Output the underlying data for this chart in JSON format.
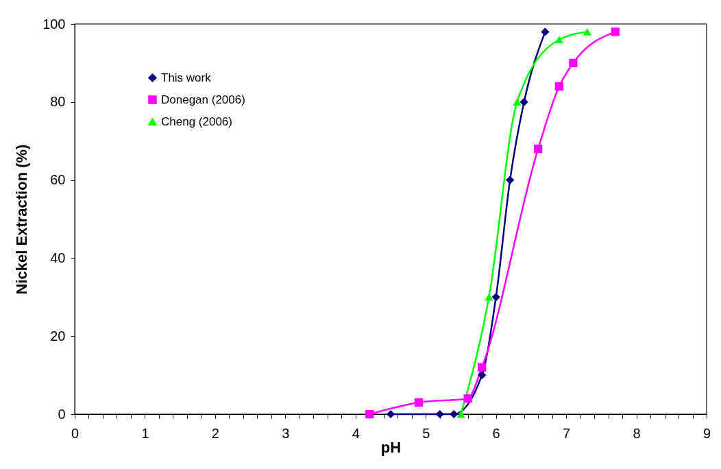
{
  "chart_data": {
    "type": "line",
    "xlabel": "pH",
    "ylabel": "Nickel Extraction (%)",
    "xlim": [
      0,
      9
    ],
    "ylim": [
      0,
      100
    ],
    "xticks": [
      0,
      {
        "value": 0.2,
        "label": null
      },
      {
        "value": 0.4,
        "label": null
      },
      {
        "value": 0.6,
        "label": null
      },
      {
        "value": 0.8,
        "label": null
      },
      1,
      {
        "value": 1.2,
        "label": null
      },
      {
        "value": 1.4,
        "label": null
      },
      {
        "value": 1.6,
        "label": null
      },
      {
        "value": 1.8,
        "label": null
      },
      2,
      {
        "value": 2.2,
        "label": null
      },
      {
        "value": 2.4,
        "label": null
      },
      {
        "value": 2.6,
        "label": null
      },
      {
        "value": 2.8,
        "label": null
      },
      3,
      {
        "value": 3.2,
        "label": null
      },
      {
        "value": 3.4,
        "label": null
      },
      {
        "value": 3.6,
        "label": null
      },
      {
        "value": 3.8,
        "label": null
      },
      4,
      {
        "value": 4.2,
        "label": null
      },
      {
        "value": 4.4,
        "label": null
      },
      {
        "value": 4.6,
        "label": null
      },
      {
        "value": 4.8,
        "label": null
      },
      5,
      {
        "value": 5.2,
        "label": null
      },
      {
        "value": 5.4,
        "label": null
      },
      {
        "value": 5.6,
        "label": null
      },
      {
        "value": 5.8,
        "label": null
      },
      6,
      {
        "value": 6.2,
        "label": null
      },
      {
        "value": 6.4,
        "label": null
      },
      {
        "value": 6.6,
        "label": null
      },
      {
        "value": 6.8,
        "label": null
      },
      7,
      {
        "value": 7.2,
        "label": null
      },
      {
        "value": 7.4,
        "label": null
      },
      {
        "value": 7.6,
        "label": null
      },
      {
        "value": 7.8,
        "label": null
      },
      8,
      {
        "value": 8.2,
        "label": null
      },
      {
        "value": 8.4,
        "label": null
      },
      {
        "value": 8.6,
        "label": null
      },
      {
        "value": 8.8,
        "label": null
      },
      9
    ],
    "yticks": [
      0,
      20,
      40,
      60,
      80,
      100
    ],
    "grid": false,
    "legend": "top left",
    "line_style": "solid",
    "series": [
      {
        "name": "This work",
        "color": "#000080",
        "marker": "diamond",
        "x": [
          4.5,
          5.2,
          5.4,
          5.8,
          6.0,
          6.2,
          6.4,
          6.7
        ],
        "values": [
          0,
          0,
          0,
          10,
          30,
          60,
          80,
          98
        ]
      },
      {
        "name": "Donegan (2006)",
        "color": "#ff00ff",
        "marker": "square",
        "x": [
          4.2,
          4.9,
          5.6,
          5.8,
          6.6,
          6.9,
          7.1,
          7.7
        ],
        "values": [
          0,
          3,
          4,
          12,
          68,
          84,
          90,
          98
        ]
      },
      {
        "name": "Cheng (2006)",
        "color": "#00ff00",
        "marker": "triangle",
        "x": [
          5.5,
          5.9,
          6.3,
          6.9,
          7.3
        ],
        "values": [
          0,
          30,
          80,
          96,
          98
        ]
      }
    ]
  }
}
